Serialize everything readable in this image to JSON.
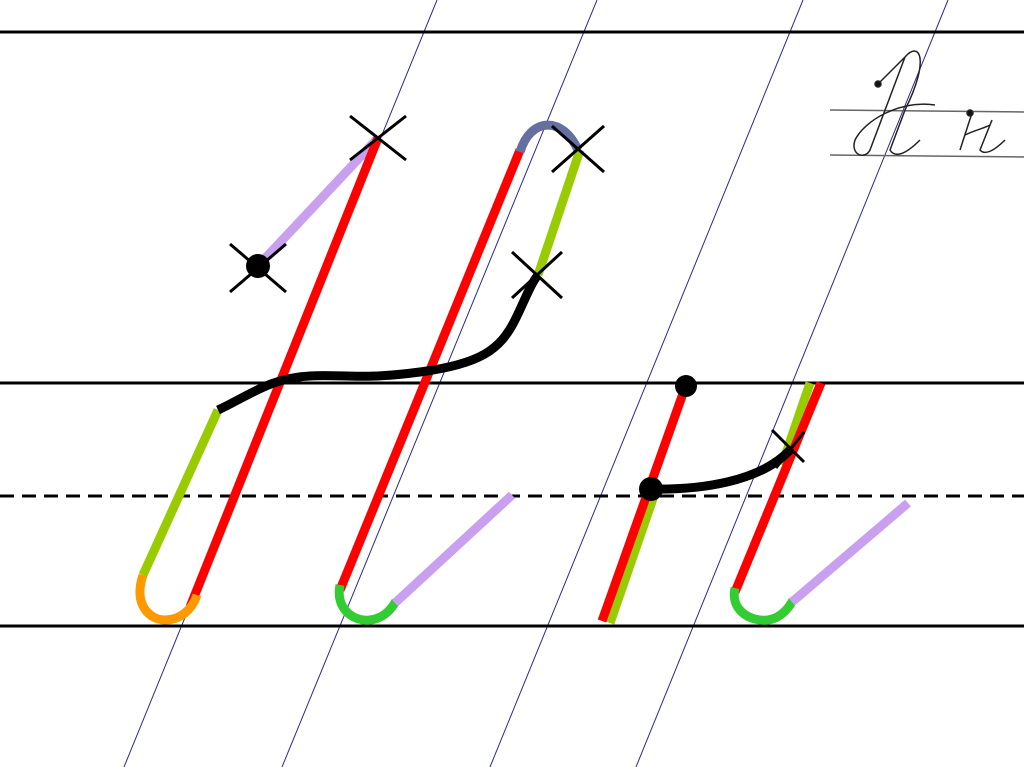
{
  "sample_image": {
    "letters": "Нн"
  },
  "colors": {
    "ruling": "#000000",
    "slant_guides": "#2a2a8a",
    "main_stroke": "#ff0000",
    "connector": "#000000",
    "upstroke_green": "#99cc00",
    "lavender": "#c9a0f0",
    "orange_loop": "#ff9900",
    "green_curve": "#33cc33",
    "top_arc": "#6670a0"
  }
}
